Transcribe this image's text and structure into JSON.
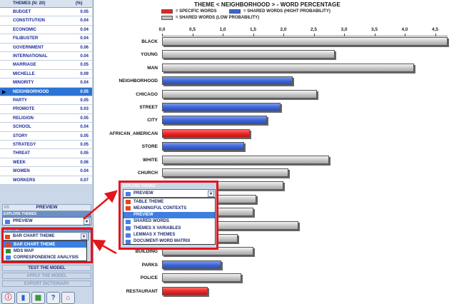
{
  "themes_header": {
    "name": "THEMES (N: 20)",
    "pct": "(%)"
  },
  "themes": [
    {
      "name": "BUDGET",
      "value": "0.05"
    },
    {
      "name": "CONSTITUTION",
      "value": "0.04"
    },
    {
      "name": "ECONOMIC",
      "value": "0.04"
    },
    {
      "name": "FILIBUSTER",
      "value": "0.04"
    },
    {
      "name": "GOVERNMENT",
      "value": "0.06"
    },
    {
      "name": "INTERNATIONAL",
      "value": "0.04"
    },
    {
      "name": "MARRIAGE",
      "value": "0.05"
    },
    {
      "name": "MICHELLE",
      "value": "0.09"
    },
    {
      "name": "MINORITY",
      "value": "0.04"
    },
    {
      "name": "NEIGHBORHOOD",
      "value": "0.05",
      "selected": true
    },
    {
      "name": "PARTY",
      "value": "0.05"
    },
    {
      "name": "PROMOTE",
      "value": "0.03"
    },
    {
      "name": "RELIGION",
      "value": "0.05"
    },
    {
      "name": "SCHOOL",
      "value": "0.04"
    },
    {
      "name": "STORY",
      "value": "0.05"
    },
    {
      "name": "STRATEGY",
      "value": "0.05"
    },
    {
      "name": "THREAT",
      "value": "0.05"
    },
    {
      "name": "WEEK",
      "value": "0.06"
    },
    {
      "name": "WOMEN",
      "value": "0.04"
    },
    {
      "name": "WORKERS",
      "value": "0.07"
    }
  ],
  "left_panel": {
    "preview_button": "PREVIEW",
    "preview_prefix": "RD",
    "explore_header": "EXPLORE THEMES",
    "explore_selected": "PREVIEW",
    "graphs_header": "GRAPHS",
    "graphs_selected": "BAR CHART THEME",
    "graphs_options": [
      "BAR CHART THEME",
      "MDS MAP",
      "CORRESPONDENCE ANALYSIS"
    ],
    "test_button": "TEST THE MODEL",
    "apply_button": "APPLY THE MODEL",
    "export_button": "EXPORT DICTIONARY"
  },
  "explore_popup": {
    "header": "EXPLORE THEMES",
    "selected": "PREVIEW",
    "options": [
      "TABLE THEME",
      "MEANINGFUL CONTEXTS",
      "PREVIEW",
      "SHARED WORDS",
      "THEMES X VARIABLES",
      "LEMMAS X THEMES",
      "DOCUMENT-WORD MATRIX"
    ]
  },
  "colors": {
    "specific": "#e82323",
    "shared_high": "#3c64d8",
    "shared_low": "#c2c2c2",
    "highlight": "#e3141b"
  },
  "chart_data": {
    "type": "bar",
    "orientation": "horizontal",
    "title": "THEME < NEIGHBORHOOD > - WORD PERCENTAGE",
    "legend": [
      "= SPECIFIC WORDS",
      "= SHARED WORDS (HIGHT PROBABILITY)",
      "= SHARED WORDS (LOW PROBABILITY)"
    ],
    "xlim": [
      0,
      4.7
    ],
    "x_ticks": [
      "0,0",
      "0,5",
      "1,0",
      "1,5",
      "2,0",
      "2,5",
      "3,0",
      "3,5",
      "4,0",
      "4,5"
    ],
    "bars": [
      {
        "label": "BLACK",
        "value": 4.7,
        "kind": "low"
      },
      {
        "label": "YOUNG",
        "value": 2.85,
        "kind": "low"
      },
      {
        "label": "MAN",
        "value": 4.15,
        "kind": "low"
      },
      {
        "label": "NEIGHBORHOOD",
        "value": 2.15,
        "kind": "high"
      },
      {
        "label": "CHICAGO",
        "value": 2.55,
        "kind": "low"
      },
      {
        "label": "STREET",
        "value": 1.95,
        "kind": "high"
      },
      {
        "label": "CITY",
        "value": 1.73,
        "kind": "high"
      },
      {
        "label": "AFRICAN_AMERICAN",
        "value": 1.45,
        "kind": "specific"
      },
      {
        "label": "STORE",
        "value": 1.35,
        "kind": "high"
      },
      {
        "label": "WHITE",
        "value": 2.75,
        "kind": "low"
      },
      {
        "label": "CHURCH",
        "value": 2.08,
        "kind": "low"
      },
      {
        "label": "",
        "value": 2.0,
        "kind": "low"
      },
      {
        "label": "",
        "value": 1.55,
        "kind": "low"
      },
      {
        "label": "",
        "value": 1.5,
        "kind": "low"
      },
      {
        "label": "",
        "value": 2.25,
        "kind": "low"
      },
      {
        "label": "",
        "value": 1.25,
        "kind": "low"
      },
      {
        "label": "BUILDING",
        "value": 1.5,
        "kind": "low"
      },
      {
        "label": "PARKS",
        "value": 0.98,
        "kind": "high"
      },
      {
        "label": "POLICE",
        "value": 1.3,
        "kind": "low"
      },
      {
        "label": "RESTAURANT",
        "value": 0.75,
        "kind": "specific"
      }
    ]
  }
}
